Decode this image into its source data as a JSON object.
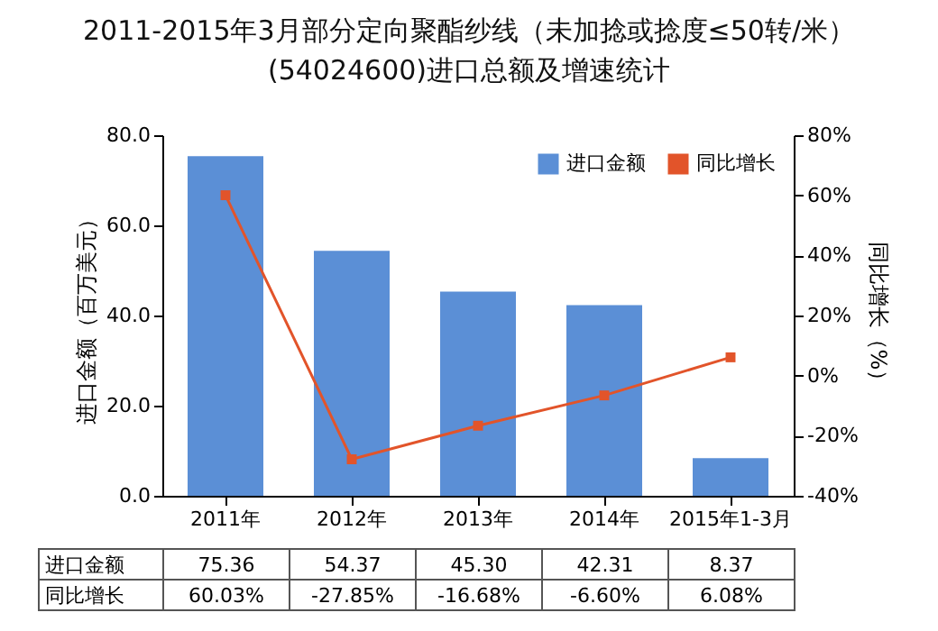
{
  "chart_data": {
    "type": "bar",
    "title": "2011-2015年3月部分定向聚酯纱线（未加捻或捻度≤50转/米）(54024600)进口总额及增速统计",
    "categories": [
      "2011年",
      "2012年",
      "2013年",
      "2014年",
      "2015年1-3月"
    ],
    "series": [
      {
        "name": "进口金额",
        "color": "#5b8fd6",
        "values": [
          75.36,
          54.37,
          45.3,
          42.31,
          8.37
        ],
        "value_labels": [
          "75.36",
          "54.37",
          "45.30",
          "42.31",
          "8.37"
        ]
      },
      {
        "name": "同比增长",
        "type": "line",
        "axis": "y2",
        "color": "#e2542a",
        "marker": "square",
        "values": [
          60.03,
          -27.85,
          -16.68,
          -6.6,
          6.08
        ],
        "value_labels": [
          "60.03%",
          "-27.85%",
          "-16.68%",
          "-6.60%",
          "6.08%"
        ]
      }
    ],
    "ylabel": "进口金额（百万美元）",
    "y2label": "同比增长（%）",
    "ylim": [
      0,
      80
    ],
    "yticks": [
      {
        "value": 0,
        "label": "0.0"
      },
      {
        "value": 20,
        "label": "20.0"
      },
      {
        "value": 40,
        "label": "40.0"
      },
      {
        "value": 60,
        "label": "60.0"
      },
      {
        "value": 80,
        "label": "80.0"
      }
    ],
    "y2lim": [
      -40,
      80
    ],
    "y2ticks": [
      {
        "value": -40,
        "label": "-40%"
      },
      {
        "value": -20,
        "label": "-20%"
      },
      {
        "value": 0,
        "label": "0%"
      },
      {
        "value": 20,
        "label": "20%"
      },
      {
        "value": 40,
        "label": "40%"
      },
      {
        "value": 60,
        "label": "60%"
      },
      {
        "value": 80,
        "label": "80%"
      }
    ],
    "legend": "top right",
    "grid": false
  }
}
